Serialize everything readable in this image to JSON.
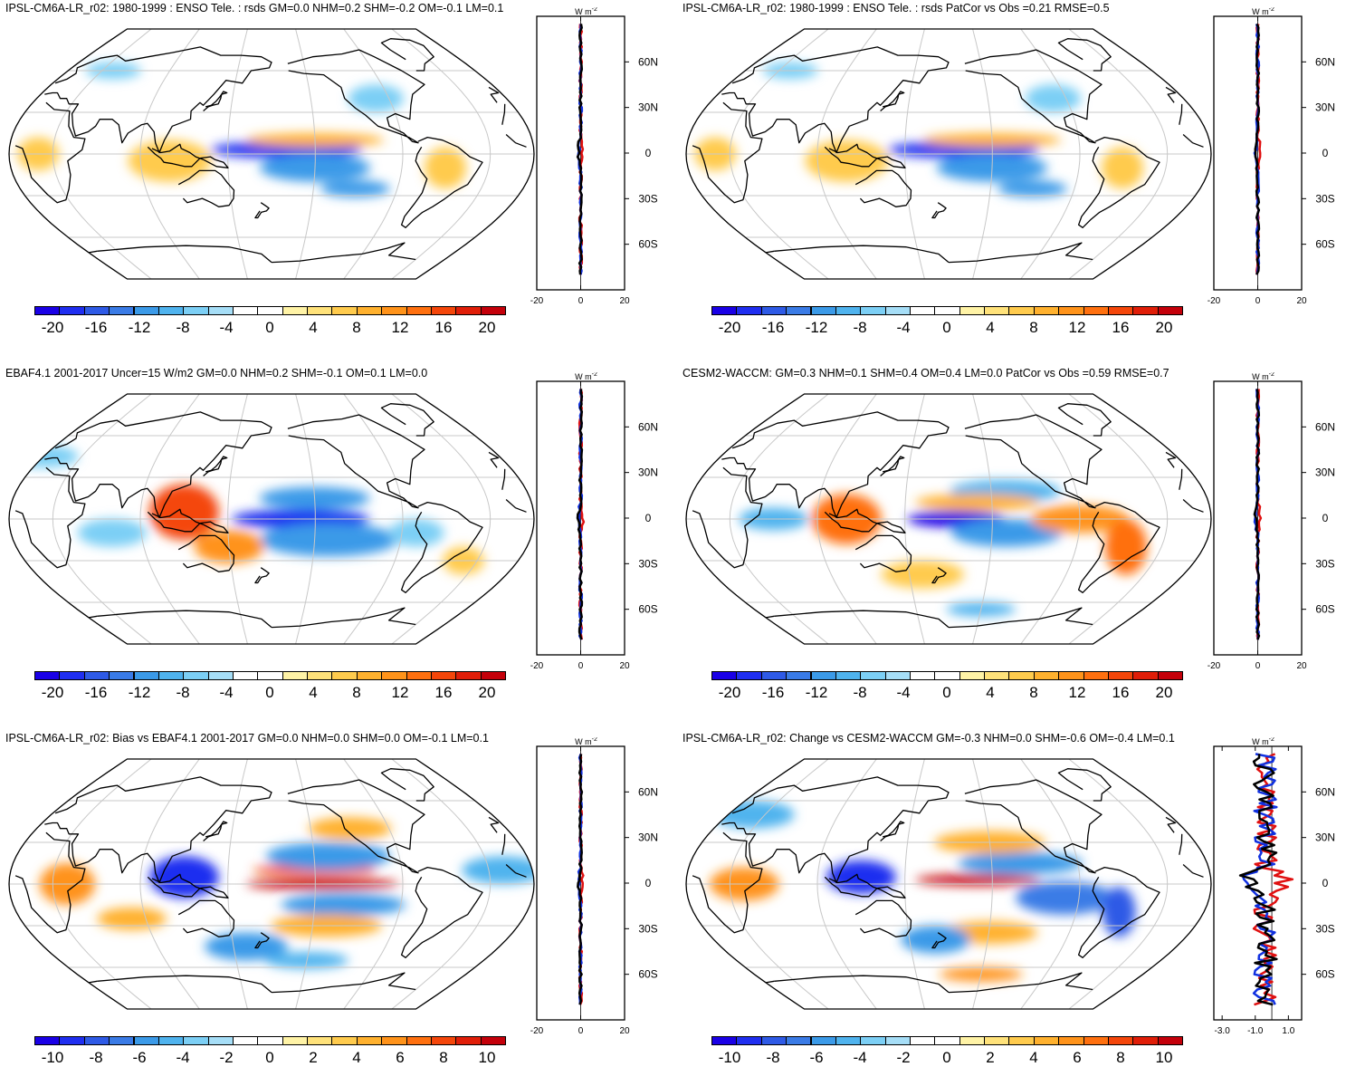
{
  "colorbar_colors": [
    "#1a00e6",
    "#1f2ef0",
    "#2e5ae6",
    "#3a7be6",
    "#3b9ae8",
    "#4fb3ee",
    "#7ccff5",
    "#a6def7",
    "#ffffff",
    "#ffffff",
    "#fff3a6",
    "#ffe27a",
    "#ffcb4d",
    "#ffb12e",
    "#ff931a",
    "#ff700f",
    "#f4460a",
    "#e01e08",
    "#c4000a"
  ],
  "land_color": "#000000",
  "panels": [
    {
      "id": "p1",
      "title": "IPSL-CM6A-LR_r02: 1980-1999 : ENSO Tele. : rsds GM=0.0 NHM=0.2 SHM=-0.2 OM=-0.1 LM=0.1",
      "colorbar_ticks": [
        "-20",
        "-16",
        "-12",
        "-8",
        "-4",
        "0",
        "4",
        "8",
        "12",
        "16",
        "20"
      ],
      "profile": {
        "unit": "W m",
        "unit_exp": "-2",
        "lat_labels": [
          "60N",
          "30N",
          "0",
          "30S",
          "60S"
        ],
        "x_labels": [
          "-20",
          "0",
          "20"
        ],
        "x_ticks": [
          -20,
          0,
          20
        ],
        "xlim": [
          -20,
          20
        ]
      },
      "anomalies": [
        {
          "kind": "neg",
          "cx": -170,
          "cy": 3,
          "rx": 55,
          "ry": 6,
          "i": 0.85
        },
        {
          "kind": "neg",
          "cx": -150,
          "cy": -10,
          "rx": 40,
          "ry": 10,
          "i": 0.5
        },
        {
          "kind": "neg",
          "cx": -120,
          "cy": -25,
          "rx": 25,
          "ry": 6,
          "i": 0.45
        },
        {
          "kind": "pos",
          "cx": -150,
          "cy": 10,
          "rx": 50,
          "ry": 5,
          "i": 0.35
        },
        {
          "kind": "pos",
          "cx": 110,
          "cy": -5,
          "rx": 30,
          "ry": 15,
          "i": 0.25
        },
        {
          "kind": "neg",
          "cx": -100,
          "cy": 40,
          "rx": 20,
          "ry": 10,
          "i": 0.3
        },
        {
          "kind": "pos",
          "cx": -60,
          "cy": -10,
          "rx": 15,
          "ry": 15,
          "i": 0.25
        },
        {
          "kind": "neg",
          "cx": 40,
          "cy": 60,
          "rx": 20,
          "ry": 6,
          "i": 0.3
        },
        {
          "kind": "pos",
          "cx": 20,
          "cy": 0,
          "rx": 15,
          "ry": 12,
          "i": 0.2
        }
      ]
    },
    {
      "id": "p2",
      "title": "IPSL-CM6A-LR_r02: 1980-1999 : ENSO Tele. : rsds PatCor vs Obs =0.21 RMSE=0.5",
      "colorbar_ticks": [
        "-20",
        "-16",
        "-12",
        "-8",
        "-4",
        "0",
        "4",
        "8",
        "12",
        "16",
        "20"
      ],
      "profile": {
        "unit": "W m",
        "unit_exp": "-2",
        "lat_labels": [
          "60N",
          "30N",
          "0",
          "30S",
          "60S"
        ],
        "x_labels": [
          "-20",
          "0",
          "20"
        ],
        "x_ticks": [
          -20,
          0,
          20
        ],
        "xlim": [
          -20,
          20
        ]
      },
      "anomalies": [
        {
          "kind": "neg",
          "cx": -170,
          "cy": 3,
          "rx": 55,
          "ry": 6,
          "i": 0.85
        },
        {
          "kind": "neg",
          "cx": -150,
          "cy": -10,
          "rx": 40,
          "ry": 10,
          "i": 0.5
        },
        {
          "kind": "neg",
          "cx": -120,
          "cy": -25,
          "rx": 25,
          "ry": 6,
          "i": 0.45
        },
        {
          "kind": "pos",
          "cx": -150,
          "cy": 10,
          "rx": 50,
          "ry": 5,
          "i": 0.35
        },
        {
          "kind": "pos",
          "cx": 110,
          "cy": -5,
          "rx": 30,
          "ry": 15,
          "i": 0.25
        },
        {
          "kind": "neg",
          "cx": -100,
          "cy": 40,
          "rx": 20,
          "ry": 10,
          "i": 0.3
        },
        {
          "kind": "pos",
          "cx": -60,
          "cy": -10,
          "rx": 15,
          "ry": 15,
          "i": 0.25
        },
        {
          "kind": "neg",
          "cx": 40,
          "cy": 60,
          "rx": 20,
          "ry": 6,
          "i": 0.3
        },
        {
          "kind": "pos",
          "cx": 20,
          "cy": 0,
          "rx": 15,
          "ry": 12,
          "i": 0.2
        }
      ]
    },
    {
      "id": "p3",
      "title": "EBAF4.1 2001-2017 Uncer=15 W/m2 GM=0.0 NHM=0.2 SHM=-0.1 OM=0.1 LM=0.0",
      "colorbar_ticks": [
        "-20",
        "-16",
        "-12",
        "-8",
        "-4",
        "0",
        "4",
        "8",
        "12",
        "16",
        "20"
      ],
      "profile": {
        "unit": "W m",
        "unit_exp": "-2",
        "lat_labels": [
          "60N",
          "30N",
          "0",
          "30S",
          "60S"
        ],
        "x_labels": [
          "-20",
          "0",
          "20"
        ],
        "x_ticks": [
          -20,
          0,
          20
        ],
        "xlim": [
          -20,
          20
        ]
      },
      "anomalies": [
        {
          "kind": "neg",
          "cx": -160,
          "cy": 0,
          "rx": 50,
          "ry": 7,
          "i": 0.9
        },
        {
          "kind": "neg",
          "cx": -140,
          "cy": -15,
          "rx": 50,
          "ry": 12,
          "i": 0.5
        },
        {
          "kind": "neg",
          "cx": -150,
          "cy": 15,
          "rx": 40,
          "ry": 8,
          "i": 0.45
        },
        {
          "kind": "pos",
          "cx": 120,
          "cy": 5,
          "rx": 25,
          "ry": 20,
          "i": 0.75
        },
        {
          "kind": "pos",
          "cx": 150,
          "cy": -20,
          "rx": 25,
          "ry": 12,
          "i": 0.45
        },
        {
          "kind": "neg",
          "cx": 70,
          "cy": -10,
          "rx": 25,
          "ry": 10,
          "i": 0.3
        },
        {
          "kind": "neg",
          "cx": -80,
          "cy": -10,
          "rx": 20,
          "ry": 10,
          "i": 0.3
        },
        {
          "kind": "pos",
          "cx": -40,
          "cy": -30,
          "rx": 15,
          "ry": 10,
          "i": 0.25
        },
        {
          "kind": "neg",
          "cx": 0,
          "cy": 45,
          "rx": 25,
          "ry": 8,
          "i": 0.3
        }
      ]
    },
    {
      "id": "p4",
      "title": "CESM2-WACCM: GM=0.3 NHM=0.1 SHM=0.4 OM=0.4 LM=0.0 PatCor vs Obs =0.59 RMSE=0.7",
      "colorbar_ticks": [
        "-20",
        "-16",
        "-12",
        "-8",
        "-4",
        "0",
        "4",
        "8",
        "12",
        "16",
        "20"
      ],
      "profile": {
        "unit": "W m",
        "unit_exp": "-2",
        "lat_labels": [
          "60N",
          "30N",
          "0",
          "30S",
          "60S"
        ],
        "x_labels": [
          "-20",
          "0",
          "20"
        ],
        "x_ticks": [
          -20,
          0,
          20
        ],
        "xlim": [
          -20,
          20
        ]
      },
      "anomalies": [
        {
          "kind": "neg",
          "cx": -175,
          "cy": 0,
          "rx": 35,
          "ry": 6,
          "i": 0.95
        },
        {
          "kind": "neg",
          "cx": -140,
          "cy": -10,
          "rx": 40,
          "ry": 10,
          "i": 0.45
        },
        {
          "kind": "neg",
          "cx": -140,
          "cy": 20,
          "rx": 40,
          "ry": 8,
          "i": 0.4
        },
        {
          "kind": "pos",
          "cx": -160,
          "cy": 12,
          "rx": 45,
          "ry": 6,
          "i": 0.4
        },
        {
          "kind": "pos",
          "cx": 110,
          "cy": 0,
          "rx": 25,
          "ry": 18,
          "i": 0.6
        },
        {
          "kind": "pos",
          "cx": -90,
          "cy": 0,
          "rx": 35,
          "ry": 10,
          "i": 0.45
        },
        {
          "kind": "pos",
          "cx": -55,
          "cy": -20,
          "rx": 15,
          "ry": 20,
          "i": 0.6
        },
        {
          "kind": "neg",
          "cx": 60,
          "cy": 0,
          "rx": 25,
          "ry": 8,
          "i": 0.4
        },
        {
          "kind": "pos",
          "cx": 160,
          "cy": -40,
          "rx": 30,
          "ry": 10,
          "i": 0.25
        },
        {
          "kind": "neg",
          "cx": -150,
          "cy": -65,
          "rx": 25,
          "ry": 5,
          "i": 0.35
        }
      ]
    },
    {
      "id": "p5",
      "title": "IPSL-CM6A-LR_r02: Bias vs EBAF4.1 2001-2017 GM=0.0 NHM=0.0 SHM=0.0 OM=-0.1 LM=0.1",
      "colorbar_ticks": [
        "-10",
        "-8",
        "-6",
        "-4",
        "-2",
        "0",
        "2",
        "4",
        "6",
        "8",
        "10"
      ],
      "profile": {
        "unit": "W m",
        "unit_exp": "-2",
        "lat_labels": [
          "60N",
          "30N",
          "0",
          "30S",
          "60S"
        ],
        "x_labels": [
          "-20",
          "0",
          "20"
        ],
        "x_ticks": [
          -20,
          0,
          20
        ],
        "xlim": [
          -20,
          20
        ]
      },
      "anomalies": [
        {
          "kind": "pos",
          "cx": -145,
          "cy": 0,
          "rx": 55,
          "ry": 4,
          "i": 0.95
        },
        {
          "kind": "pos",
          "cx": -150,
          "cy": 10,
          "rx": 45,
          "ry": 4,
          "i": 0.8
        },
        {
          "kind": "neg",
          "cx": 120,
          "cy": 5,
          "rx": 25,
          "ry": 15,
          "i": 0.85
        },
        {
          "kind": "neg",
          "cx": -140,
          "cy": 20,
          "rx": 45,
          "ry": 10,
          "i": 0.5
        },
        {
          "kind": "neg",
          "cx": -130,
          "cy": -15,
          "rx": 45,
          "ry": 8,
          "i": 0.5
        },
        {
          "kind": "pos",
          "cx": -140,
          "cy": -30,
          "rx": 40,
          "ry": 8,
          "i": 0.4
        },
        {
          "kind": "pos",
          "cx": 40,
          "cy": 0,
          "rx": 20,
          "ry": 15,
          "i": 0.5
        },
        {
          "kind": "neg",
          "cx": -20,
          "cy": 10,
          "rx": 30,
          "ry": 10,
          "i": 0.4
        },
        {
          "kind": "pos",
          "cx": -120,
          "cy": 40,
          "rx": 30,
          "ry": 8,
          "i": 0.35
        },
        {
          "kind": "neg",
          "cx": 160,
          "cy": -45,
          "rx": 30,
          "ry": 10,
          "i": 0.45
        },
        {
          "kind": "neg",
          "cx": -150,
          "cy": -55,
          "rx": 30,
          "ry": 6,
          "i": 0.35
        },
        {
          "kind": "pos",
          "cx": 80,
          "cy": -25,
          "rx": 25,
          "ry": 8,
          "i": 0.35
        }
      ]
    },
    {
      "id": "p6",
      "title": "IPSL-CM6A-LR_r02: Change vs CESM2-WACCM GM=-0.3 NHM=0.0 SHM=-0.6 OM=-0.4 LM=0.1",
      "colorbar_ticks": [
        "-10",
        "-8",
        "-6",
        "-4",
        "-2",
        "0",
        "2",
        "4",
        "6",
        "8",
        "10"
      ],
      "profile": {
        "unit": "W m",
        "unit_exp": "-2",
        "lat_labels": [
          "60N",
          "30N",
          "0",
          "30S",
          "60S"
        ],
        "x_labels": [
          "-3.0",
          "-1.0",
          "1.0"
        ],
        "x_ticks": [
          -3.0,
          -1.0,
          1.0
        ],
        "xlim": [
          -3.5,
          1.8
        ]
      },
      "anomalies": [
        {
          "kind": "pos",
          "cx": -160,
          "cy": 3,
          "rx": 45,
          "ry": 4,
          "i": 0.95
        },
        {
          "kind": "neg",
          "cx": 120,
          "cy": 5,
          "rx": 25,
          "ry": 12,
          "i": 0.85
        },
        {
          "kind": "neg",
          "cx": -130,
          "cy": 15,
          "rx": 45,
          "ry": 8,
          "i": 0.55
        },
        {
          "kind": "neg",
          "cx": -100,
          "cy": -10,
          "rx": 35,
          "ry": 12,
          "i": 0.6
        },
        {
          "kind": "neg",
          "cx": -60,
          "cy": -20,
          "rx": 12,
          "ry": 18,
          "i": 0.7
        },
        {
          "kind": "pos",
          "cx": -150,
          "cy": 30,
          "rx": 40,
          "ry": 8,
          "i": 0.4
        },
        {
          "kind": "pos",
          "cx": 40,
          "cy": 0,
          "rx": 25,
          "ry": 12,
          "i": 0.5
        },
        {
          "kind": "pos",
          "cx": -150,
          "cy": -35,
          "rx": 35,
          "ry": 8,
          "i": 0.35
        },
        {
          "kind": "neg",
          "cx": 170,
          "cy": -40,
          "rx": 25,
          "ry": 10,
          "i": 0.45
        },
        {
          "kind": "pos",
          "cx": -150,
          "cy": -65,
          "rx": 30,
          "ry": 5,
          "i": 0.45
        },
        {
          "kind": "neg",
          "cx": 20,
          "cy": 50,
          "rx": 30,
          "ry": 10,
          "i": 0.35
        }
      ]
    }
  ]
}
